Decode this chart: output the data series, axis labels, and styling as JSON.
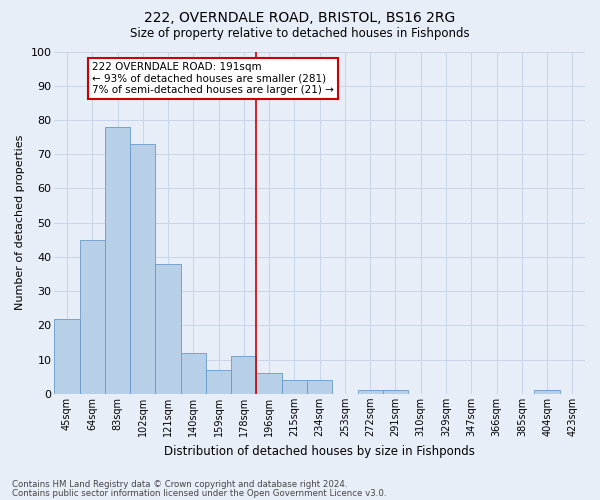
{
  "title1": "222, OVERNDALE ROAD, BRISTOL, BS16 2RG",
  "title2": "Size of property relative to detached houses in Fishponds",
  "xlabel": "Distribution of detached houses by size in Fishponds",
  "ylabel": "Number of detached properties",
  "categories": [
    "45sqm",
    "64sqm",
    "83sqm",
    "102sqm",
    "121sqm",
    "140sqm",
    "159sqm",
    "178sqm",
    "196sqm",
    "215sqm",
    "234sqm",
    "253sqm",
    "272sqm",
    "291sqm",
    "310sqm",
    "329sqm",
    "347sqm",
    "366sqm",
    "385sqm",
    "404sqm",
    "423sqm"
  ],
  "values": [
    22,
    45,
    78,
    73,
    38,
    12,
    7,
    11,
    6,
    4,
    4,
    0,
    1,
    1,
    0,
    0,
    0,
    0,
    0,
    1,
    0
  ],
  "bar_color": "#b8cfe8",
  "bar_edge_color": "#6699cc",
  "vline_color": "#cc0000",
  "annotation_text": "222 OVERNDALE ROAD: 191sqm\n← 93% of detached houses are smaller (281)\n7% of semi-detached houses are larger (21) →",
  "annotation_box_color": "#ffffff",
  "annotation_box_edge_color": "#cc0000",
  "ylim": [
    0,
    100
  ],
  "yticks": [
    0,
    10,
    20,
    30,
    40,
    50,
    60,
    70,
    80,
    90,
    100
  ],
  "grid_color": "#c8d4e8",
  "bg_color": "#e8eef8",
  "footnote1": "Contains HM Land Registry data © Crown copyright and database right 2024.",
  "footnote2": "Contains public sector information licensed under the Open Government Licence v3.0."
}
